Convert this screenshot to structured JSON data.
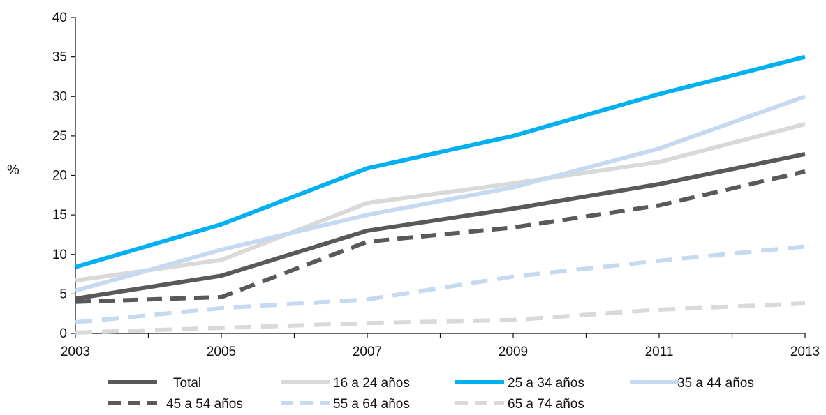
{
  "chart_data": {
    "type": "line",
    "title": "",
    "xlabel": "",
    "ylabel": "%",
    "x": [
      2003,
      2005,
      2007,
      2009,
      2011,
      2013
    ],
    "x_ticks": [
      "2003",
      "2005",
      "2007",
      "2009",
      "2011",
      "2013"
    ],
    "xlim": [
      2003,
      2013
    ],
    "ylim": [
      0,
      40
    ],
    "y_ticks": [
      "0",
      "5",
      "10",
      "15",
      "20",
      "25",
      "30",
      "35",
      "40"
    ],
    "grid": false,
    "legend_position": "bottom",
    "series": [
      {
        "name": "Total",
        "values": [
          4.4,
          7.3,
          13.0,
          15.8,
          18.9,
          22.7
        ],
        "color": "#595959",
        "dash": "solid"
      },
      {
        "name": "16 a 24 años",
        "values": [
          6.7,
          9.3,
          16.5,
          19.0,
          21.7,
          26.5
        ],
        "color": "#d9d9d9",
        "dash": "solid"
      },
      {
        "name": "25 a 34 años",
        "values": [
          8.4,
          13.8,
          20.9,
          25.0,
          30.3,
          35.0
        ],
        "color": "#00b0f0",
        "dash": "solid"
      },
      {
        "name": "35 a 44 años",
        "values": [
          5.4,
          10.6,
          15.0,
          18.5,
          23.4,
          30.0
        ],
        "color": "#c5d9f1",
        "dash": "solid"
      },
      {
        "name": "45 a 54 años",
        "values": [
          4.0,
          4.6,
          11.6,
          13.4,
          16.2,
          20.5
        ],
        "color": "#595959",
        "dash": "dashed"
      },
      {
        "name": "55 a 64 años",
        "values": [
          1.4,
          3.2,
          4.3,
          7.2,
          9.2,
          11.0
        ],
        "color": "#c5d9f1",
        "dash": "dashed"
      },
      {
        "name": "65 a 74 años",
        "values": [
          0.1,
          0.7,
          1.3,
          1.7,
          3.0,
          3.8
        ],
        "color": "#d9d9d9",
        "dash": "dashed"
      }
    ]
  }
}
